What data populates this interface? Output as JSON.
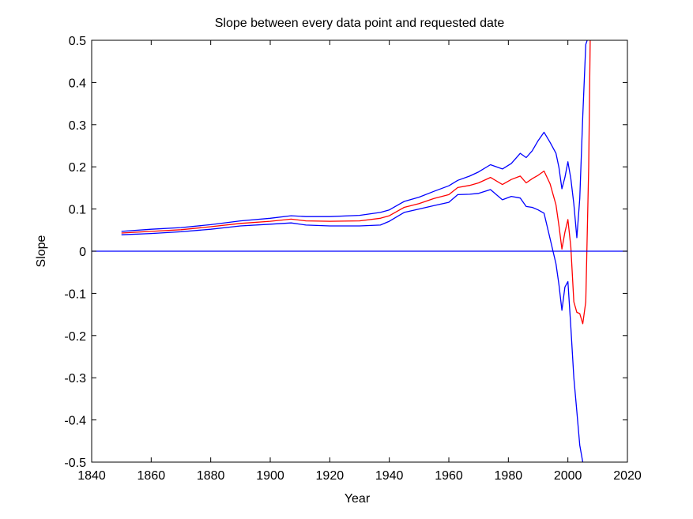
{
  "chart_data": {
    "type": "line",
    "title": "Slope between every data point and requested date",
    "xlabel": "Year",
    "ylabel": "Slope",
    "xlim": [
      1840,
      2020
    ],
    "ylim": [
      -0.5,
      0.5
    ],
    "x_ticks": [
      1840,
      1860,
      1880,
      1900,
      1920,
      1940,
      1960,
      1980,
      2000,
      2020
    ],
    "x_tick_labels": [
      "1840",
      "1860",
      "1880",
      "1900",
      "1920",
      "1940",
      "1960",
      "1980",
      "2000",
      "2020"
    ],
    "y_ticks": [
      -0.5,
      -0.4,
      -0.3,
      -0.2,
      -0.1,
      0,
      0.1,
      0.2,
      0.3,
      0.4,
      0.5
    ],
    "y_tick_labels": [
      "-0.5",
      "-0.4",
      "-0.3",
      "-0.2",
      "-0.1",
      "0",
      "0.1",
      "0.2",
      "0.3",
      "0.4",
      "0.5"
    ],
    "grid": false,
    "legend": "none",
    "reference_line": {
      "y": 0,
      "color": "#0000ff"
    },
    "series": [
      {
        "color": "#0000ff",
        "points": [
          [
            1850,
            0.047
          ],
          [
            1860,
            0.052
          ],
          [
            1870,
            0.056
          ],
          [
            1880,
            0.063
          ],
          [
            1890,
            0.072
          ],
          [
            1900,
            0.078
          ],
          [
            1907,
            0.084
          ],
          [
            1912,
            0.082
          ],
          [
            1920,
            0.082
          ],
          [
            1930,
            0.085
          ],
          [
            1937,
            0.092
          ],
          [
            1940,
            0.098
          ],
          [
            1945,
            0.118
          ],
          [
            1950,
            0.128
          ],
          [
            1955,
            0.142
          ],
          [
            1960,
            0.155
          ],
          [
            1963,
            0.168
          ],
          [
            1967,
            0.178
          ],
          [
            1970,
            0.188
          ],
          [
            1974,
            0.205
          ],
          [
            1978,
            0.195
          ],
          [
            1981,
            0.208
          ],
          [
            1984,
            0.232
          ],
          [
            1986,
            0.222
          ],
          [
            1988,
            0.238
          ],
          [
            1990,
            0.262
          ],
          [
            1992,
            0.282
          ],
          [
            1994,
            0.258
          ],
          [
            1996,
            0.232
          ],
          [
            1997,
            0.198
          ],
          [
            1998,
            0.148
          ],
          [
            1999,
            0.175
          ],
          [
            2000,
            0.212
          ],
          [
            2001,
            0.172
          ],
          [
            2002,
            0.112
          ],
          [
            2003,
            0.032
          ],
          [
            2004,
            0.125
          ],
          [
            2005,
            0.32
          ],
          [
            2006,
            0.49
          ],
          [
            2006.5,
            0.5
          ]
        ]
      },
      {
        "color": "#ff0000",
        "points": [
          [
            1850,
            0.043
          ],
          [
            1860,
            0.047
          ],
          [
            1870,
            0.051
          ],
          [
            1880,
            0.058
          ],
          [
            1890,
            0.066
          ],
          [
            1900,
            0.071
          ],
          [
            1907,
            0.076
          ],
          [
            1912,
            0.072
          ],
          [
            1920,
            0.071
          ],
          [
            1930,
            0.072
          ],
          [
            1937,
            0.078
          ],
          [
            1940,
            0.084
          ],
          [
            1945,
            0.104
          ],
          [
            1950,
            0.113
          ],
          [
            1955,
            0.125
          ],
          [
            1960,
            0.134
          ],
          [
            1963,
            0.151
          ],
          [
            1967,
            0.156
          ],
          [
            1970,
            0.162
          ],
          [
            1974,
            0.175
          ],
          [
            1978,
            0.158
          ],
          [
            1981,
            0.17
          ],
          [
            1984,
            0.178
          ],
          [
            1986,
            0.162
          ],
          [
            1988,
            0.172
          ],
          [
            1990,
            0.18
          ],
          [
            1992,
            0.19
          ],
          [
            1994,
            0.16
          ],
          [
            1996,
            0.11
          ],
          [
            1997,
            0.06
          ],
          [
            1998,
            0.005
          ],
          [
            1999,
            0.045
          ],
          [
            2000,
            0.075
          ],
          [
            2001,
            0.01
          ],
          [
            2002,
            -0.12
          ],
          [
            2003,
            -0.145
          ],
          [
            2004,
            -0.148
          ],
          [
            2005,
            -0.172
          ],
          [
            2006,
            -0.12
          ],
          [
            2007,
            0.2
          ],
          [
            2007.5,
            0.5
          ]
        ]
      },
      {
        "color": "#0000ff",
        "points": [
          [
            1850,
            0.039
          ],
          [
            1860,
            0.042
          ],
          [
            1870,
            0.046
          ],
          [
            1880,
            0.052
          ],
          [
            1890,
            0.06
          ],
          [
            1900,
            0.064
          ],
          [
            1907,
            0.067
          ],
          [
            1912,
            0.062
          ],
          [
            1920,
            0.06
          ],
          [
            1930,
            0.06
          ],
          [
            1937,
            0.062
          ],
          [
            1940,
            0.071
          ],
          [
            1945,
            0.092
          ],
          [
            1950,
            0.1
          ],
          [
            1955,
            0.108
          ],
          [
            1960,
            0.116
          ],
          [
            1963,
            0.134
          ],
          [
            1967,
            0.135
          ],
          [
            1970,
            0.137
          ],
          [
            1974,
            0.146
          ],
          [
            1978,
            0.122
          ],
          [
            1981,
            0.13
          ],
          [
            1984,
            0.126
          ],
          [
            1986,
            0.106
          ],
          [
            1988,
            0.104
          ],
          [
            1990,
            0.098
          ],
          [
            1992,
            0.09
          ],
          [
            1994,
            0.03
          ],
          [
            1996,
            -0.03
          ],
          [
            1997,
            -0.08
          ],
          [
            1998,
            -0.14
          ],
          [
            1999,
            -0.085
          ],
          [
            2000,
            -0.072
          ],
          [
            2001,
            -0.18
          ],
          [
            2002,
            -0.3
          ],
          [
            2003,
            -0.38
          ],
          [
            2004,
            -0.46
          ],
          [
            2005,
            -0.5
          ]
        ]
      }
    ]
  }
}
